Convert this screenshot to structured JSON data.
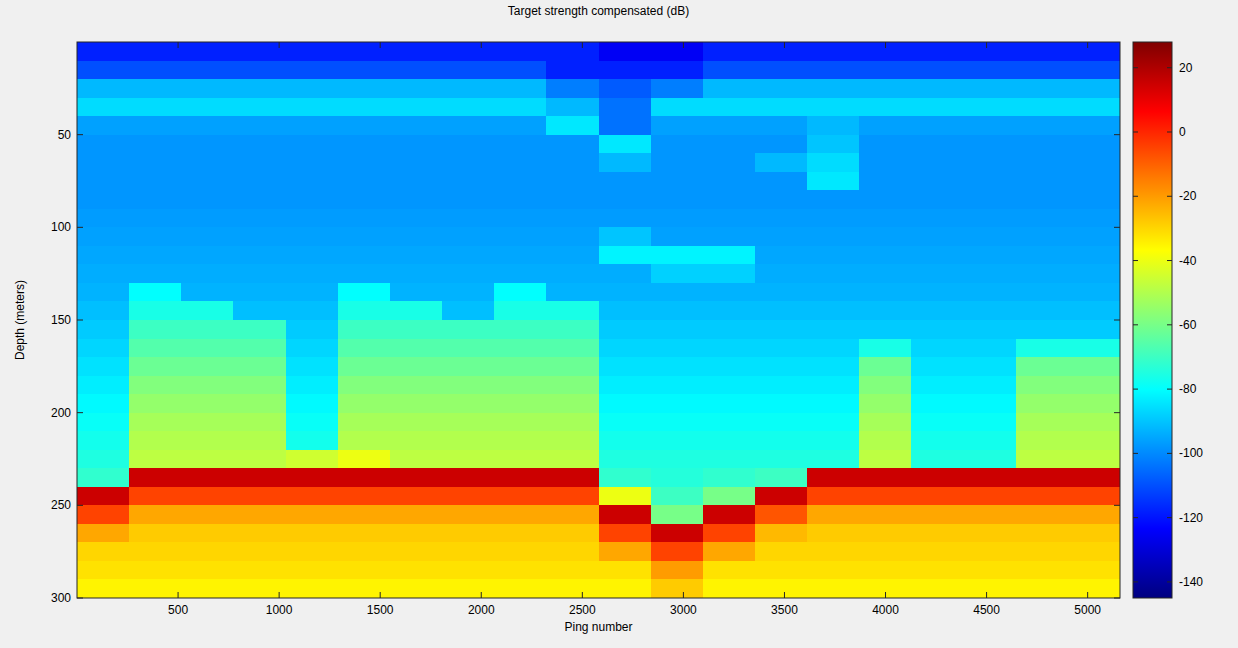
{
  "chart_data": {
    "type": "heatmap",
    "title": "Target strength compensated (dB)",
    "x_label": "Ping number",
    "y_label": "Depth (meters)",
    "xlim": [
      0,
      5160
    ],
    "ylim": [
      300,
      0
    ],
    "xticks": [
      500,
      1000,
      1500,
      2000,
      2500,
      3000,
      3500,
      4000,
      4500,
      5000
    ],
    "yticks": [
      50,
      100,
      150,
      200,
      250,
      300
    ],
    "grid": false,
    "x": [
      129,
      387,
      645,
      903,
      1161,
      1419,
      1677,
      1935,
      2193,
      2451,
      2709,
      2967,
      3225,
      3483,
      3741,
      3999,
      4257,
      4515,
      4773,
      5031
    ],
    "y": [
      5,
      15,
      25,
      35,
      45,
      55,
      65,
      75,
      85,
      95,
      105,
      115,
      125,
      135,
      145,
      155,
      165,
      175,
      185,
      195,
      205,
      215,
      225,
      235,
      245,
      255,
      265,
      275,
      285,
      295
    ],
    "cells": [
      [
        -118,
        -118,
        -118,
        -118,
        -118,
        -118,
        -118,
        -118,
        -118,
        -118,
        -125,
        -125,
        -118,
        -118,
        -118,
        -118,
        -118,
        -118,
        -118,
        -118
      ],
      [
        -110,
        -110,
        -110,
        -110,
        -110,
        -110,
        -110,
        -110,
        -110,
        -118,
        -118,
        -118,
        -110,
        -110,
        -110,
        -110,
        -110,
        -110,
        -110,
        -110
      ],
      [
        -92,
        -92,
        -92,
        -92,
        -92,
        -92,
        -92,
        -92,
        -92,
        -102,
        -108,
        -102,
        -92,
        -92,
        -92,
        -92,
        -92,
        -92,
        -92,
        -92
      ],
      [
        -86,
        -86,
        -86,
        -86,
        -86,
        -86,
        -86,
        -86,
        -86,
        -92,
        -104,
        -86,
        -86,
        -86,
        -86,
        -86,
        -86,
        -86,
        -86,
        -86
      ],
      [
        -96,
        -96,
        -96,
        -96,
        -96,
        -96,
        -96,
        -96,
        -96,
        -84,
        -104,
        -96,
        -96,
        -96,
        -92,
        -96,
        -96,
        -96,
        -96,
        -96
      ],
      [
        -98,
        -98,
        -98,
        -98,
        -98,
        -98,
        -98,
        -98,
        -98,
        -98,
        -84,
        -98,
        -98,
        -98,
        -90,
        -98,
        -98,
        -98,
        -98,
        -98
      ],
      [
        -98,
        -98,
        -98,
        -98,
        -98,
        -98,
        -98,
        -98,
        -98,
        -98,
        -92,
        -98,
        -98,
        -92,
        -86,
        -98,
        -98,
        -98,
        -98,
        -98
      ],
      [
        -98,
        -98,
        -98,
        -98,
        -98,
        -98,
        -98,
        -98,
        -98,
        -98,
        -98,
        -98,
        -98,
        -98,
        -84,
        -98,
        -98,
        -98,
        -98,
        -98
      ],
      [
        -98,
        -98,
        -98,
        -98,
        -98,
        -98,
        -98,
        -98,
        -98,
        -98,
        -98,
        -98,
        -98,
        -98,
        -98,
        -98,
        -98,
        -98,
        -98,
        -98
      ],
      [
        -97,
        -97,
        -97,
        -97,
        -97,
        -97,
        -97,
        -97,
        -97,
        -97,
        -97,
        -97,
        -97,
        -97,
        -97,
        -97,
        -97,
        -97,
        -97,
        -97
      ],
      [
        -96,
        -96,
        -96,
        -96,
        -96,
        -96,
        -96,
        -96,
        -96,
        -96,
        -90,
        -96,
        -96,
        -96,
        -96,
        -96,
        -96,
        -96,
        -96,
        -96
      ],
      [
        -95,
        -95,
        -95,
        -95,
        -95,
        -95,
        -95,
        -95,
        -95,
        -95,
        -82,
        -82,
        -82,
        -95,
        -95,
        -95,
        -95,
        -95,
        -95,
        -95
      ],
      [
        -94,
        -94,
        -94,
        -94,
        -94,
        -94,
        -94,
        -94,
        -94,
        -94,
        -94,
        -88,
        -88,
        -94,
        -94,
        -94,
        -94,
        -94,
        -94,
        -94
      ],
      [
        -93,
        -80,
        -93,
        -93,
        -93,
        -80,
        -93,
        -93,
        -80,
        -93,
        -93,
        -93,
        -93,
        -93,
        -93,
        -93,
        -93,
        -93,
        -93,
        -93
      ],
      [
        -91,
        -76,
        -76,
        -91,
        -91,
        -76,
        -76,
        -91,
        -76,
        -76,
        -91,
        -91,
        -91,
        -91,
        -91,
        -91,
        -91,
        -91,
        -91,
        -91
      ],
      [
        -89,
        -70,
        -70,
        -70,
        -89,
        -70,
        -70,
        -70,
        -70,
        -70,
        -89,
        -89,
        -89,
        -89,
        -89,
        -89,
        -89,
        -89,
        -89,
        -89
      ],
      [
        -87,
        -66,
        -66,
        -66,
        -87,
        -66,
        -66,
        -66,
        -66,
        -66,
        -87,
        -87,
        -87,
        -87,
        -87,
        -76,
        -87,
        -87,
        -76,
        -76
      ],
      [
        -85,
        -62,
        -62,
        -62,
        -85,
        -62,
        -62,
        -62,
        -62,
        -62,
        -85,
        -85,
        -85,
        -85,
        -85,
        -62,
        -85,
        -85,
        -62,
        -62
      ],
      [
        -83,
        -58,
        -58,
        -58,
        -83,
        -58,
        -58,
        -58,
        -58,
        -58,
        -83,
        -83,
        -83,
        -83,
        -83,
        -58,
        -83,
        -83,
        -58,
        -58
      ],
      [
        -81,
        -55,
        -55,
        -55,
        -81,
        -55,
        -55,
        -55,
        -55,
        -55,
        -81,
        -81,
        -81,
        -81,
        -81,
        -55,
        -81,
        -81,
        -55,
        -55
      ],
      [
        -79,
        -52,
        -52,
        -52,
        -79,
        -52,
        -52,
        -52,
        -52,
        -52,
        -79,
        -79,
        -79,
        -79,
        -79,
        -52,
        -79,
        -79,
        -52,
        -52
      ],
      [
        -77,
        -50,
        -50,
        -50,
        -77,
        -50,
        -50,
        -50,
        -50,
        -50,
        -77,
        -77,
        -77,
        -77,
        -77,
        -50,
        -77,
        -77,
        -50,
        -50
      ],
      [
        -75,
        -48,
        -48,
        -48,
        -45,
        -40,
        -48,
        -48,
        -48,
        -48,
        -75,
        -75,
        -75,
        -75,
        -75,
        -48,
        -75,
        -75,
        -48,
        -48
      ],
      [
        -72,
        15,
        15,
        15,
        15,
        15,
        15,
        15,
        15,
        15,
        -72,
        -74,
        -72,
        -70,
        15,
        15,
        15,
        15,
        15,
        15
      ],
      [
        15,
        -5,
        -5,
        -5,
        -5,
        -5,
        -5,
        -5,
        -5,
        -5,
        -40,
        -70,
        -60,
        15,
        -5,
        -5,
        -5,
        -5,
        -5,
        -5
      ],
      [
        -5,
        -22,
        -22,
        -22,
        -22,
        -22,
        -22,
        -22,
        -22,
        -22,
        15,
        -60,
        15,
        -8,
        -22,
        -22,
        -22,
        -22,
        -22,
        -22
      ],
      [
        -22,
        -28,
        -28,
        -28,
        -28,
        -28,
        -28,
        -28,
        -28,
        -28,
        -5,
        15,
        -5,
        -25,
        -28,
        -28,
        -28,
        -28,
        -28,
        -28
      ],
      [
        -30,
        -30,
        -30,
        -30,
        -30,
        -30,
        -30,
        -30,
        -30,
        -30,
        -22,
        -5,
        -22,
        -30,
        -30,
        -30,
        -30,
        -30,
        -30,
        -30
      ],
      [
        -32,
        -32,
        -32,
        -32,
        -32,
        -32,
        -32,
        -32,
        -32,
        -32,
        -32,
        -20,
        -32,
        -32,
        -32,
        -32,
        -32,
        -32,
        -32,
        -32
      ],
      [
        -35,
        -35,
        -35,
        -35,
        -35,
        -35,
        -35,
        -35,
        -35,
        -35,
        -35,
        -28,
        -35,
        -35,
        -35,
        -35,
        -35,
        -35,
        -35,
        -35
      ]
    ],
    "color_range": [
      -145,
      28
    ],
    "color_ticks": [
      20,
      0,
      -20,
      -40,
      -60,
      -80,
      -100,
      -120,
      -140
    ]
  }
}
